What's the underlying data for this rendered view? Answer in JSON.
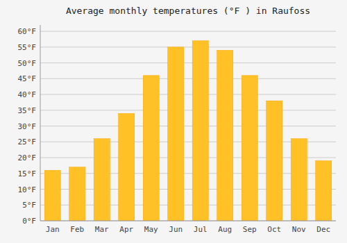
{
  "chart_data": {
    "type": "bar",
    "title": "Average monthly temperatures (°F ) in Raufoss",
    "categories": [
      "Jan",
      "Feb",
      "Mar",
      "Apr",
      "May",
      "Jun",
      "Jul",
      "Aug",
      "Sep",
      "Oct",
      "Nov",
      "Dec"
    ],
    "values": [
      16,
      17,
      26,
      34,
      46,
      55,
      57,
      54,
      46,
      38,
      26,
      19
    ],
    "color": "#FFC125",
    "ylim": [
      0,
      62
    ],
    "yticks": [
      {
        "value": 0,
        "label": "0°F"
      },
      {
        "value": 5,
        "label": "5°F"
      },
      {
        "value": 10,
        "label": "10°F"
      },
      {
        "value": 15,
        "label": "15°F"
      },
      {
        "value": 20,
        "label": "20°F"
      },
      {
        "value": 25,
        "label": "25°F"
      },
      {
        "value": 30,
        "label": "30°F"
      },
      {
        "value": 35,
        "label": "35°F"
      },
      {
        "value": 40,
        "label": "40°F"
      },
      {
        "value": 45,
        "label": "45°F"
      },
      {
        "value": 50,
        "label": "50°F"
      },
      {
        "value": 55,
        "label": "55°F"
      },
      {
        "value": 60,
        "label": "60°F"
      }
    ],
    "grid": true
  }
}
